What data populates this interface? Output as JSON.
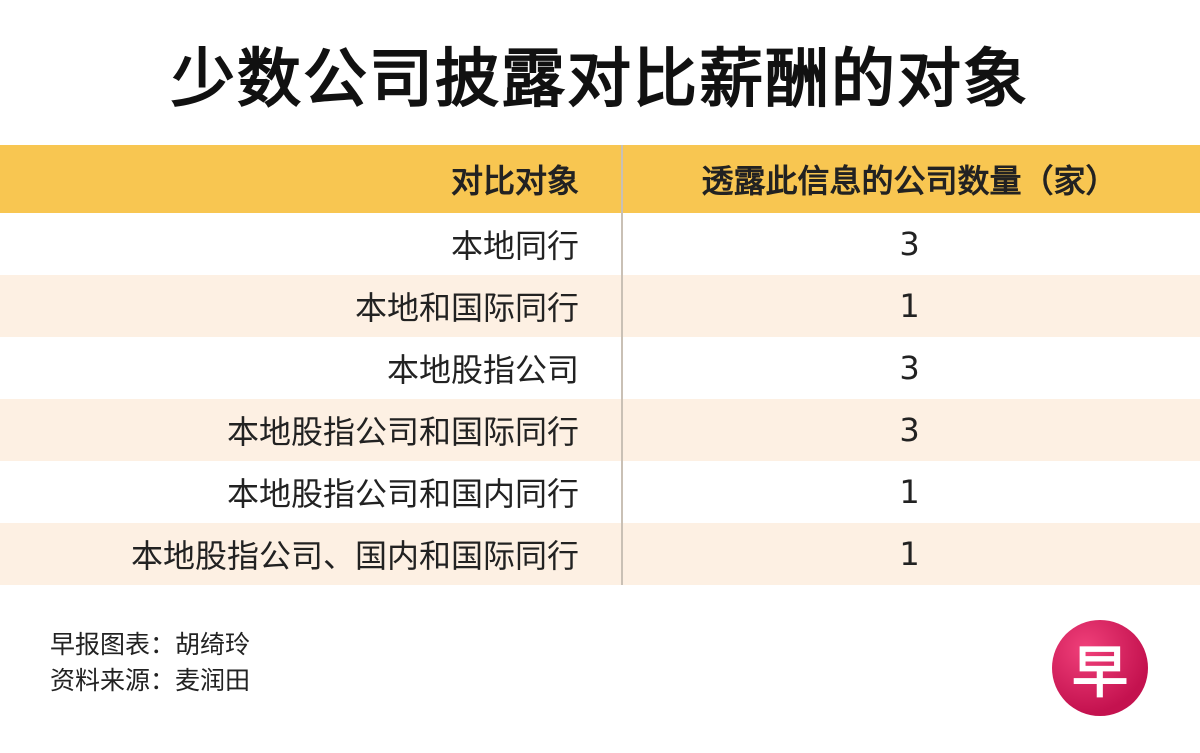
{
  "header": {
    "title": "少数公司披露对比薪酬的对象"
  },
  "table": {
    "columns": [
      "对比对象",
      "透露此信息的公司数量（家）"
    ],
    "rows": [
      [
        "本地同行",
        3
      ],
      [
        "本地和国际同行",
        1
      ],
      [
        "本地股指公司",
        3
      ],
      [
        "本地股指公司和国际同行",
        3
      ],
      [
        "本地股指公司和国内同行",
        1
      ],
      [
        "本地股指公司、国内和国际同行",
        1
      ]
    ]
  },
  "footer": {
    "credits": [
      "早报图表：胡绮玲",
      "资料来源：麦润田"
    ],
    "logo": "早"
  }
}
